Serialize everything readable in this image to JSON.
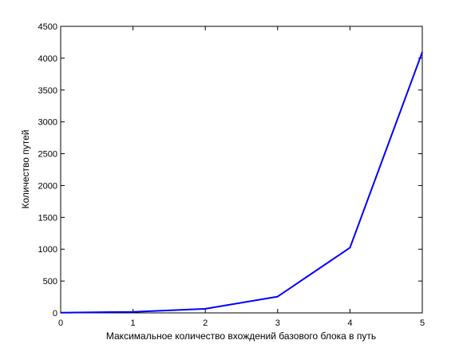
{
  "chart_data": {
    "type": "line",
    "title": "",
    "xlabel": "Максимальное количество вхождений базового блока в путь",
    "ylabel": "Количество путей",
    "xlim": [
      0,
      5
    ],
    "ylim": [
      0,
      4500
    ],
    "x_ticks": [
      0,
      1,
      2,
      3,
      4,
      5
    ],
    "y_ticks": [
      0,
      500,
      1000,
      1500,
      2000,
      2500,
      3000,
      3500,
      4000,
      4500
    ],
    "x_tick_labels": [
      "0",
      "1",
      "2",
      "3",
      "4",
      "5"
    ],
    "y_tick_labels": [
      "0",
      "500",
      "1000",
      "1500",
      "2000",
      "2500",
      "3000",
      "3500",
      "4000",
      "4500"
    ],
    "grid": false,
    "series": [
      {
        "x": [
          0,
          1,
          2,
          3,
          4,
          5
        ],
        "y": [
          4,
          16,
          64,
          256,
          1024,
          4096
        ],
        "color": "#0000ff"
      }
    ]
  }
}
